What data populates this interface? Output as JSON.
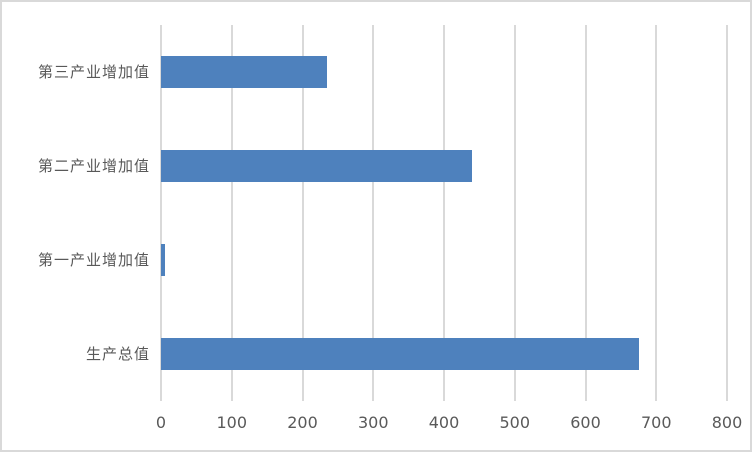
{
  "chart": {
    "background_color": "#ffffff",
    "frame_border_color": "#d9d9d9"
  },
  "chart_data": {
    "type": "bar",
    "orientation": "horizontal",
    "title": "",
    "xlabel": "",
    "ylabel": "",
    "categories": [
      "第三产业增加值",
      "第二产业增加值",
      "第一产业增加值",
      "生产总值"
    ],
    "values": [
      235,
      440,
      5,
      676
    ],
    "xlim": [
      0,
      800
    ],
    "xticks": [
      0,
      100,
      200,
      300,
      400,
      500,
      600,
      700,
      800
    ],
    "grid": "vertical-gridlines-on",
    "legend": "none",
    "data_labels": "none",
    "bar_color": "#4e81bd",
    "gridline_color": "#d9d9d9",
    "tick_label_color": "#595959",
    "category_label_color": "#595959"
  }
}
